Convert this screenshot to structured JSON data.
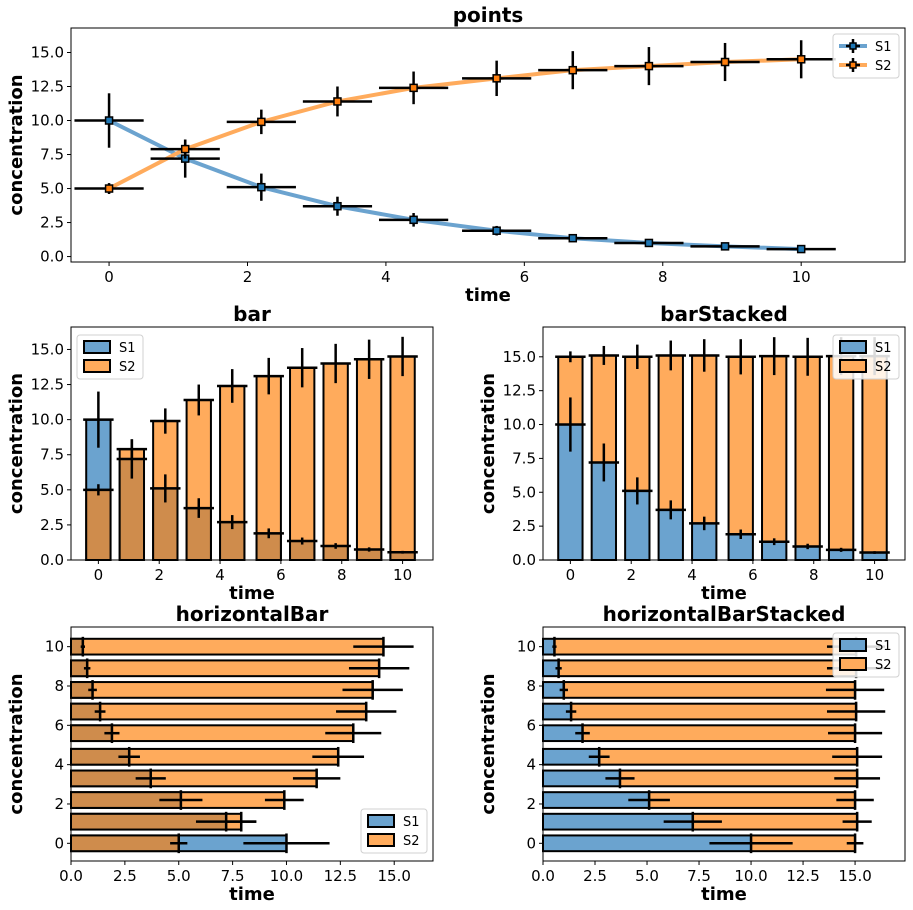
{
  "colors": {
    "S1": "#6ba3cf",
    "S2": "#ffab5c",
    "S1_line": "#1f77b4",
    "S2_line": "#ff7f0e",
    "overlap": "#cf8c4c",
    "frame": "#000000"
  },
  "chart_data": [
    {
      "id": "points",
      "type": "line",
      "title": "points",
      "xlabel": "time",
      "ylabel": "concentration",
      "x": [
        0,
        1.1,
        2.2,
        3.3,
        4.4,
        5.6,
        6.7,
        7.8,
        8.9,
        10
      ],
      "series": [
        {
          "name": "S1",
          "values": [
            10.0,
            7.2,
            5.1,
            3.7,
            2.7,
            1.9,
            1.35,
            1.0,
            0.75,
            0.55
          ],
          "yerr": [
            2.0,
            1.4,
            1.0,
            0.7,
            0.5,
            0.35,
            0.25,
            0.2,
            0.15,
            0.1
          ],
          "xerr": 0.5
        },
        {
          "name": "S2",
          "values": [
            5.0,
            7.9,
            9.9,
            11.4,
            12.4,
            13.1,
            13.7,
            14.0,
            14.3,
            14.5
          ],
          "yerr": [
            0.4,
            0.7,
            0.9,
            1.1,
            1.2,
            1.3,
            1.4,
            1.4,
            1.4,
            1.4
          ],
          "xerr": 0.5
        }
      ],
      "xlim": [
        -0.55,
        11.5
      ],
      "ylim": [
        -0.4,
        16.8
      ],
      "xticks": [
        0,
        2,
        4,
        6,
        8,
        10
      ],
      "yticks": [
        0.0,
        2.5,
        5.0,
        7.5,
        10.0,
        12.5,
        15.0
      ],
      "legend": "top-right",
      "grid": false
    },
    {
      "id": "bar",
      "type": "bar",
      "title": "bar",
      "xlabel": "time",
      "ylabel": "concentration",
      "x": [
        0,
        1.1,
        2.2,
        3.3,
        4.4,
        5.6,
        6.7,
        7.8,
        8.9,
        10
      ],
      "series": [
        {
          "name": "S1",
          "values": [
            10.0,
            7.2,
            5.1,
            3.7,
            2.7,
            1.9,
            1.35,
            1.0,
            0.75,
            0.55
          ],
          "yerr": [
            2.0,
            1.4,
            1.0,
            0.7,
            0.5,
            0.35,
            0.25,
            0.2,
            0.15,
            0.1
          ],
          "xerr": 0.5
        },
        {
          "name": "S2",
          "values": [
            5.0,
            7.9,
            9.9,
            11.4,
            12.4,
            13.1,
            13.7,
            14.0,
            14.3,
            14.5
          ],
          "yerr": [
            0.4,
            0.7,
            0.9,
            1.1,
            1.2,
            1.3,
            1.4,
            1.4,
            1.4,
            1.4
          ],
          "xerr": 0.5
        }
      ],
      "xlim": [
        -0.9,
        11.0
      ],
      "ylim": [
        0,
        16.6
      ],
      "xticks": [
        0,
        2,
        4,
        6,
        8,
        10
      ],
      "yticks": [
        0.0,
        2.5,
        5.0,
        7.5,
        10.0,
        12.5,
        15.0
      ],
      "legend": "top-left",
      "grid": false
    },
    {
      "id": "barStacked",
      "type": "bar",
      "stacked": true,
      "title": "barStacked",
      "xlabel": "time",
      "ylabel": "concentration",
      "x": [
        0,
        1.1,
        2.2,
        3.3,
        4.4,
        5.6,
        6.7,
        7.8,
        8.9,
        10
      ],
      "series": [
        {
          "name": "S1",
          "values": [
            10.0,
            7.2,
            5.1,
            3.7,
            2.7,
            1.9,
            1.35,
            1.0,
            0.75,
            0.55
          ],
          "yerr": [
            2.0,
            1.4,
            1.0,
            0.7,
            0.5,
            0.35,
            0.25,
            0.2,
            0.15,
            0.1
          ],
          "xerr": 0.5
        },
        {
          "name": "S2",
          "values": [
            5.0,
            7.9,
            9.9,
            11.4,
            12.4,
            13.1,
            13.7,
            14.0,
            14.3,
            14.5
          ],
          "yerr": [
            0.4,
            0.7,
            0.9,
            1.1,
            1.2,
            1.3,
            1.4,
            1.4,
            1.4,
            1.4
          ],
          "xerr": 0.5
        }
      ],
      "xlim": [
        -0.9,
        11.0
      ],
      "ylim": [
        0,
        17.2
      ],
      "xticks": [
        0,
        2,
        4,
        6,
        8,
        10
      ],
      "yticks": [
        0.0,
        2.5,
        5.0,
        7.5,
        10.0,
        12.5,
        15.0
      ],
      "legend": "top-right",
      "grid": false
    },
    {
      "id": "horizontalBar",
      "type": "bar",
      "orientation": "horizontal",
      "title": "horizontalBar",
      "xlabel": "time",
      "ylabel": "concentration",
      "x": [
        0,
        1.1,
        2.2,
        3.3,
        4.4,
        5.6,
        6.7,
        7.8,
        8.9,
        10
      ],
      "series": [
        {
          "name": "S1",
          "values": [
            10.0,
            7.2,
            5.1,
            3.7,
            2.7,
            1.9,
            1.35,
            1.0,
            0.75,
            0.55
          ],
          "yerr": [
            2.0,
            1.4,
            1.0,
            0.7,
            0.5,
            0.35,
            0.25,
            0.2,
            0.15,
            0.1
          ],
          "xerr": 0.5
        },
        {
          "name": "S2",
          "values": [
            5.0,
            7.9,
            9.9,
            11.4,
            12.4,
            13.1,
            13.7,
            14.0,
            14.3,
            14.5
          ],
          "yerr": [
            0.4,
            0.7,
            0.9,
            1.1,
            1.2,
            1.3,
            1.4,
            1.4,
            1.4,
            1.4
          ],
          "xerr": 0.5
        }
      ],
      "xlim": [
        0,
        16.8
      ],
      "ylim": [
        -0.9,
        11.0
      ],
      "xticks": [
        0.0,
        2.5,
        5.0,
        7.5,
        10.0,
        12.5,
        15.0
      ],
      "yticks": [
        0,
        2,
        4,
        6,
        8,
        10
      ],
      "legend": "bottom-right",
      "grid": false
    },
    {
      "id": "horizontalBarStacked",
      "type": "bar",
      "orientation": "horizontal",
      "stacked": true,
      "title": "horizontalBarStacked",
      "xlabel": "time",
      "ylabel": "concentration",
      "x": [
        0,
        1.1,
        2.2,
        3.3,
        4.4,
        5.6,
        6.7,
        7.8,
        8.9,
        10
      ],
      "series": [
        {
          "name": "S1",
          "values": [
            10.0,
            7.2,
            5.1,
            3.7,
            2.7,
            1.9,
            1.35,
            1.0,
            0.75,
            0.55
          ],
          "yerr": [
            2.0,
            1.4,
            1.0,
            0.7,
            0.5,
            0.35,
            0.25,
            0.2,
            0.15,
            0.1
          ],
          "xerr": 0.5
        },
        {
          "name": "S2",
          "values": [
            5.0,
            7.9,
            9.9,
            11.4,
            12.4,
            13.1,
            13.7,
            14.0,
            14.3,
            14.5
          ],
          "yerr": [
            0.4,
            0.7,
            0.9,
            1.1,
            1.2,
            1.3,
            1.4,
            1.4,
            1.4,
            1.4
          ],
          "xerr": 0.5
        }
      ],
      "xlim": [
        0,
        17.4
      ],
      "ylim": [
        -0.9,
        11.0
      ],
      "xticks": [
        0.0,
        2.5,
        5.0,
        7.5,
        10.0,
        12.5,
        15.0
      ],
      "yticks": [
        0,
        2,
        4,
        6,
        8,
        10
      ],
      "legend": "top-right",
      "grid": false
    }
  ]
}
